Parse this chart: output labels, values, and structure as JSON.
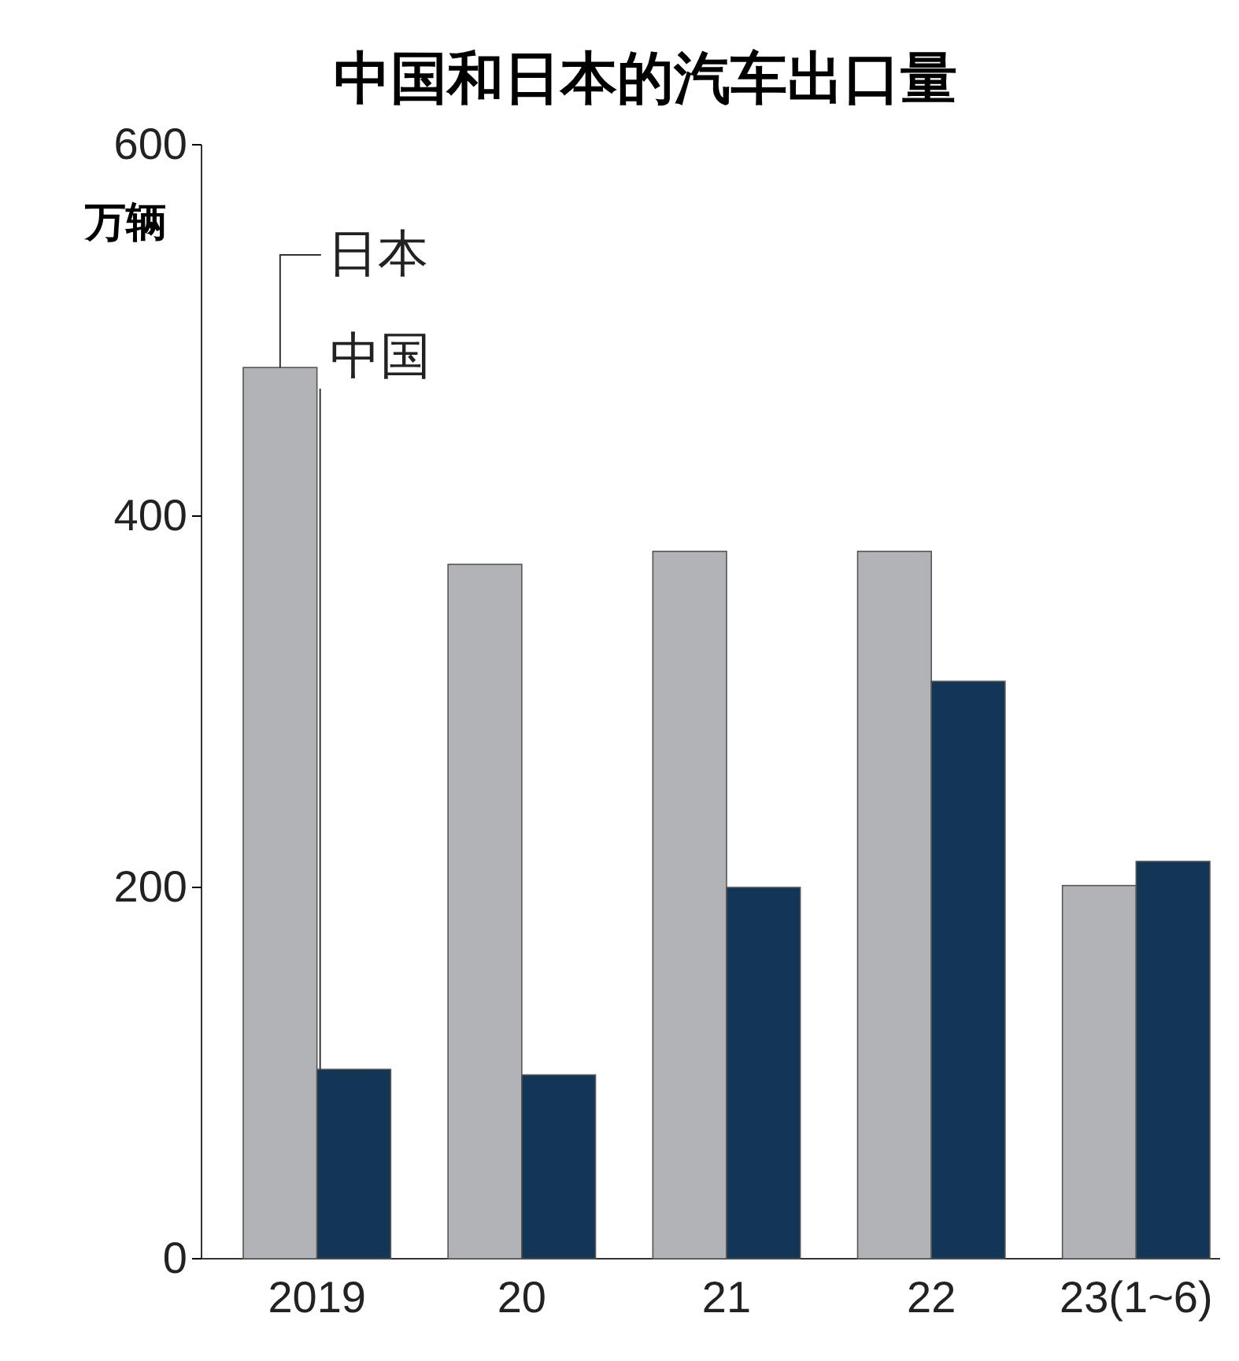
{
  "chart_data": {
    "type": "bar",
    "title": "中国和日本的汽车出口量",
    "ylabel": "万辆",
    "categories": [
      "2019",
      "20",
      "21",
      "22",
      "23(1~6)"
    ],
    "series": [
      {
        "name": "日本",
        "color": "#b2b3b6",
        "values": [
          480,
          374,
          381,
          381,
          201
        ]
      },
      {
        "name": "中国",
        "color": "#133556",
        "values": [
          102,
          99,
          200,
          311,
          214
        ]
      }
    ],
    "ylim": [
      0,
      600
    ],
    "yticks": [
      0,
      200,
      400,
      600
    ],
    "grid": false,
    "legend": false
  }
}
